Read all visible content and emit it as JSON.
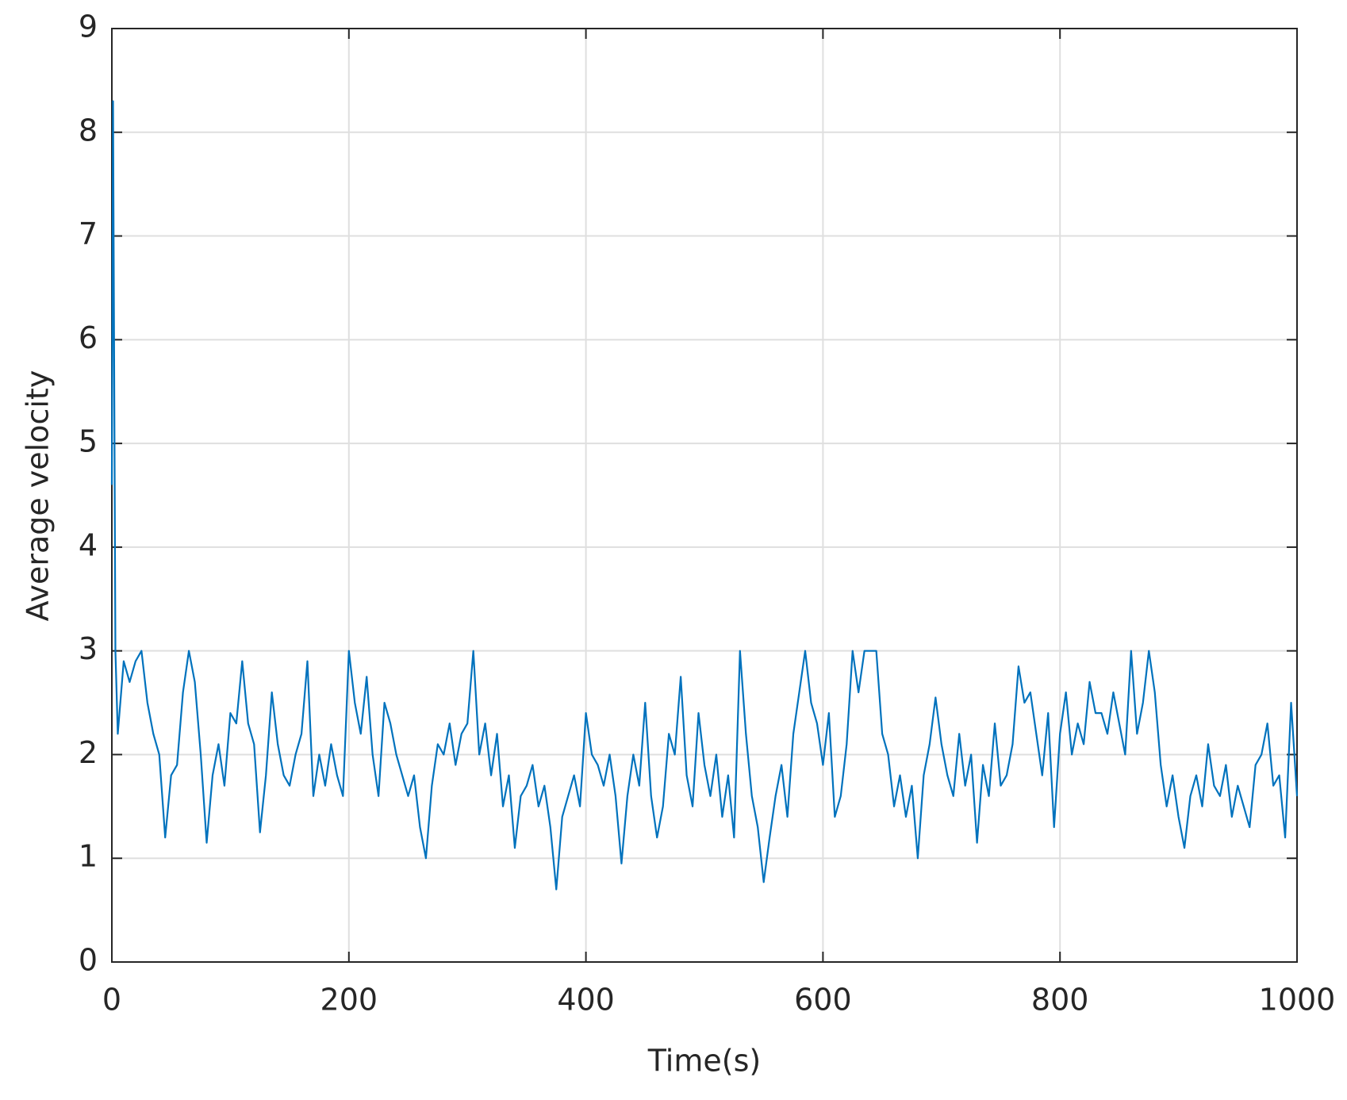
{
  "chart_data": {
    "type": "line",
    "xlabel": "Time(s)",
    "ylabel": "Average velocity",
    "color": "#0072bd",
    "grid": true,
    "xlim": [
      0,
      1000
    ],
    "xticks": [
      0,
      200,
      400,
      600,
      800,
      1000
    ],
    "ylim": [
      0,
      9
    ],
    "yticks": [
      0,
      1,
      2,
      3,
      4,
      5,
      6,
      7,
      8,
      9
    ],
    "x": [
      0,
      1,
      3,
      5,
      10,
      15,
      20,
      25,
      30,
      35,
      40,
      45,
      50,
      55,
      60,
      65,
      70,
      75,
      80,
      85,
      90,
      95,
      100,
      105,
      110,
      115,
      120,
      125,
      130,
      135,
      140,
      145,
      150,
      155,
      160,
      165,
      170,
      175,
      180,
      185,
      190,
      195,
      200,
      205,
      210,
      215,
      220,
      225,
      230,
      235,
      240,
      245,
      250,
      255,
      260,
      265,
      270,
      275,
      280,
      285,
      290,
      295,
      300,
      305,
      310,
      315,
      320,
      325,
      330,
      335,
      340,
      345,
      350,
      355,
      360,
      365,
      370,
      375,
      380,
      385,
      390,
      395,
      400,
      405,
      410,
      415,
      420,
      425,
      430,
      435,
      440,
      445,
      450,
      455,
      460,
      465,
      470,
      475,
      480,
      485,
      490,
      495,
      500,
      505,
      510,
      515,
      520,
      525,
      530,
      535,
      540,
      545,
      550,
      555,
      560,
      565,
      570,
      575,
      580,
      585,
      590,
      595,
      600,
      605,
      610,
      615,
      620,
      625,
      630,
      635,
      640,
      645,
      650,
      655,
      660,
      665,
      670,
      675,
      680,
      685,
      690,
      695,
      700,
      705,
      710,
      715,
      720,
      725,
      730,
      735,
      740,
      745,
      750,
      755,
      760,
      765,
      770,
      775,
      780,
      785,
      790,
      795,
      800,
      805,
      810,
      815,
      820,
      825,
      830,
      835,
      840,
      845,
      850,
      855,
      860,
      865,
      870,
      875,
      880,
      885,
      890,
      895,
      900,
      905,
      910,
      915,
      920,
      925,
      930,
      935,
      940,
      945,
      950,
      955,
      960,
      965,
      970,
      975,
      980,
      985,
      990,
      995,
      1000
    ],
    "values": [
      4.6,
      8.3,
      3.0,
      2.2,
      2.9,
      2.7,
      2.9,
      3.0,
      2.5,
      2.2,
      2.0,
      1.2,
      1.8,
      1.9,
      2.6,
      3.0,
      2.7,
      2.0,
      1.15,
      1.8,
      2.1,
      1.7,
      2.4,
      2.3,
      2.9,
      2.3,
      2.1,
      1.25,
      1.8,
      2.6,
      2.1,
      1.8,
      1.7,
      2.0,
      2.2,
      2.9,
      1.6,
      2.0,
      1.7,
      2.1,
      1.8,
      1.6,
      3.0,
      2.5,
      2.2,
      2.75,
      2.0,
      1.6,
      2.5,
      2.3,
      2.0,
      1.8,
      1.6,
      1.8,
      1.3,
      1.0,
      1.7,
      2.1,
      2.0,
      2.3,
      1.9,
      2.2,
      2.3,
      3.0,
      2.0,
      2.3,
      1.8,
      2.2,
      1.5,
      1.8,
      1.1,
      1.6,
      1.7,
      1.9,
      1.5,
      1.7,
      1.3,
      0.7,
      1.4,
      1.6,
      1.8,
      1.5,
      2.4,
      2.0,
      1.9,
      1.7,
      2.0,
      1.6,
      0.95,
      1.6,
      2.0,
      1.7,
      2.5,
      1.6,
      1.2,
      1.5,
      2.2,
      2.0,
      2.75,
      1.8,
      1.5,
      2.4,
      1.9,
      1.6,
      2.0,
      1.4,
      1.8,
      1.2,
      3.0,
      2.2,
      1.6,
      1.3,
      0.77,
      1.2,
      1.6,
      1.9,
      1.4,
      2.2,
      2.6,
      3.0,
      2.5,
      2.3,
      1.9,
      2.4,
      1.4,
      1.6,
      2.1,
      3.0,
      2.6,
      3.0,
      3.0,
      3.0,
      2.2,
      2.0,
      1.5,
      1.8,
      1.4,
      1.7,
      1.0,
      1.8,
      2.1,
      2.55,
      2.1,
      1.8,
      1.6,
      2.2,
      1.7,
      2.0,
      1.15,
      1.9,
      1.6,
      2.3,
      1.7,
      1.8,
      2.1,
      2.85,
      2.5,
      2.6,
      2.2,
      1.8,
      2.4,
      1.3,
      2.2,
      2.6,
      2.0,
      2.3,
      2.1,
      2.7,
      2.4,
      2.4,
      2.2,
      2.6,
      2.3,
      2.0,
      3.0,
      2.2,
      2.5,
      3.0,
      2.6,
      1.9,
      1.5,
      1.8,
      1.4,
      1.1,
      1.6,
      1.8,
      1.5,
      2.1,
      1.7,
      1.6,
      1.9,
      1.4,
      1.7,
      1.5,
      1.3,
      1.9,
      2.0,
      2.3,
      1.7,
      1.8,
      1.2,
      2.5,
      1.6
    ]
  }
}
